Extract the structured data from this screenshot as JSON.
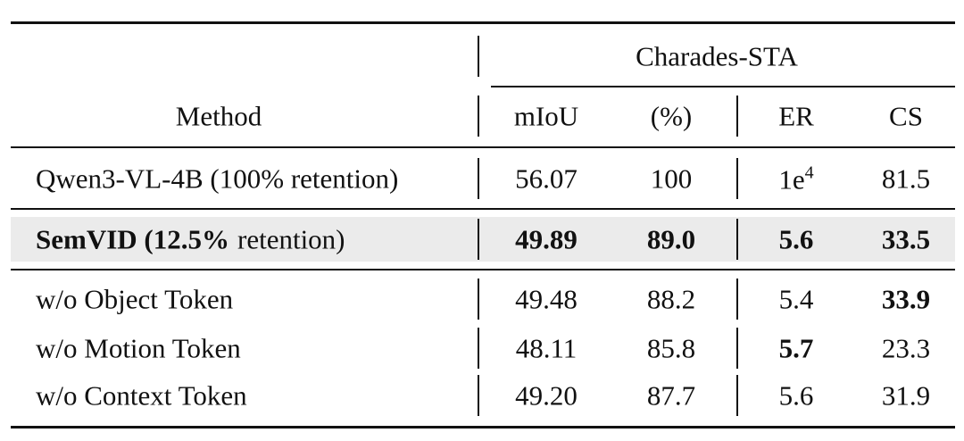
{
  "table": {
    "group_header": "Charades-STA",
    "columns": [
      "Method",
      "mIoU",
      "(%)",
      "ER",
      "CS"
    ],
    "rows": [
      {
        "method": "Qwen3-VL-4B (100% retention)",
        "cells": [
          "56.07",
          "100",
          {
            "base": "1e",
            "sup": "4"
          },
          "81.5"
        ],
        "bold_columns": []
      },
      {
        "method": {
          "bold": "SemVID (12.5%",
          "normal": "retention)"
        },
        "cells": [
          "49.89",
          "89.0",
          "5.6",
          "33.5"
        ],
        "bold_columns": [
          0,
          1,
          2,
          3
        ],
        "shaded": true
      },
      {
        "method": "w/o Object Token",
        "cells": [
          "49.48",
          "88.2",
          "5.4",
          "33.9"
        ],
        "bold_columns": [
          3
        ]
      },
      {
        "method": "w/o Motion Token",
        "cells": [
          "48.11",
          "85.8",
          "5.7",
          "23.3"
        ],
        "bold_columns": [
          2
        ]
      },
      {
        "method": "w/o Context Token",
        "cells": [
          "49.20",
          "87.7",
          "5.6",
          "31.9"
        ],
        "bold_columns": []
      }
    ]
  }
}
